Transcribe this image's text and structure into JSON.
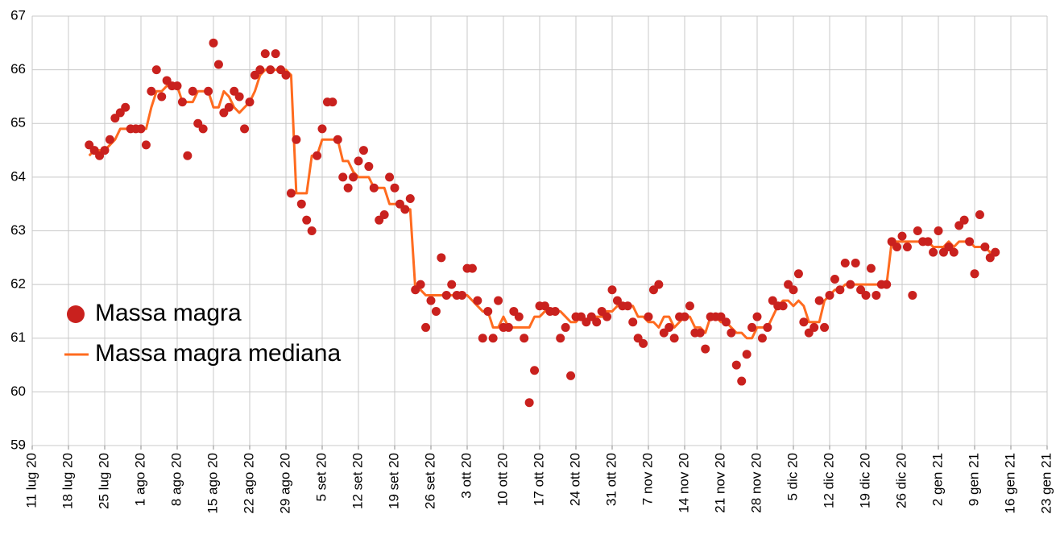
{
  "chart_data": {
    "type": "scatter",
    "x": [
      11,
      12,
      13,
      14,
      15,
      16,
      17,
      18,
      19,
      20,
      21,
      22,
      23,
      24,
      25,
      26,
      27,
      28,
      29,
      30,
      31,
      32,
      33,
      34,
      35,
      36,
      37,
      38,
      39,
      40,
      41,
      42,
      43,
      44,
      45,
      46,
      47,
      48,
      49,
      50,
      51,
      52,
      53,
      54,
      55,
      56,
      57,
      58,
      59,
      60,
      61,
      62,
      63,
      64,
      65,
      66,
      67,
      68,
      69,
      70,
      71,
      72,
      73,
      74,
      75,
      76,
      77,
      78,
      79,
      80,
      81,
      82,
      83,
      84,
      85,
      86,
      87,
      88,
      89,
      90,
      91,
      92,
      93,
      94,
      95,
      96,
      97,
      98,
      99,
      100,
      101,
      102,
      103,
      104,
      105,
      106,
      107,
      108,
      109,
      110,
      111,
      112,
      113,
      114,
      115,
      116,
      117,
      118,
      119,
      120,
      121,
      122,
      123,
      124,
      125,
      126,
      127,
      128,
      129,
      130,
      131,
      132,
      133,
      134,
      135,
      136,
      137,
      138,
      139,
      140,
      141,
      142,
      143,
      144,
      145,
      146,
      147,
      148,
      149,
      150,
      151,
      152,
      153,
      154,
      155,
      156,
      157,
      158,
      159,
      160,
      161,
      162,
      163,
      164,
      165,
      166,
      167,
      168,
      169,
      170,
      171,
      172,
      173,
      174,
      175,
      176,
      177,
      178,
      179,
      180,
      181,
      182,
      183,
      184,
      185,
      186
    ],
    "series": [
      {
        "name": "Massa magra",
        "color": "#c9211e",
        "mode": "markers",
        "values": [
          64.6,
          64.5,
          64.4,
          64.5,
          64.7,
          65.1,
          65.2,
          65.3,
          64.9,
          64.9,
          64.9,
          64.6,
          65.6,
          66.0,
          65.5,
          65.8,
          65.7,
          65.7,
          65.4,
          64.4,
          65.6,
          65.0,
          64.9,
          65.6,
          66.5,
          66.1,
          65.2,
          65.3,
          65.6,
          65.5,
          64.9,
          65.4,
          65.9,
          66.0,
          66.3,
          66.0,
          66.3,
          66.0,
          65.9,
          63.7,
          64.7,
          63.5,
          63.2,
          63.0,
          64.4,
          64.9,
          65.4,
          65.4,
          64.7,
          64.0,
          63.8,
          64.0,
          64.3,
          64.5,
          64.2,
          63.8,
          63.2,
          63.3,
          64.0,
          63.8,
          63.5,
          63.4,
          63.6,
          61.9,
          62.0,
          61.2,
          61.7,
          61.5,
          62.5,
          61.8,
          62.0,
          61.8,
          61.8,
          62.3,
          62.3,
          61.7,
          61.0,
          61.5,
          61.0,
          61.7,
          61.2,
          61.2,
          61.5,
          61.4,
          61.0,
          59.8,
          60.4,
          61.6,
          61.6,
          61.5,
          61.5,
          61.0,
          61.2,
          60.3,
          61.4,
          61.4,
          61.3,
          61.4,
          61.3,
          61.5,
          61.4,
          61.9,
          61.7,
          61.6,
          61.6,
          61.3,
          61.0,
          60.9,
          61.4,
          61.9,
          62.0,
          61.1,
          61.2,
          61.0,
          61.4,
          61.4,
          61.6,
          61.1,
          61.1,
          60.8,
          61.4,
          61.4,
          61.4,
          61.3,
          61.1,
          60.5,
          60.2,
          60.7,
          61.2,
          61.4,
          61.0,
          61.2,
          61.7,
          61.6,
          61.6,
          62.0,
          61.9,
          62.2,
          61.3,
          61.1,
          61.2,
          61.7,
          61.2,
          61.8,
          62.1,
          61.9,
          62.4,
          62.0,
          62.4,
          61.9,
          61.8,
          62.3,
          61.8,
          62.0,
          62.0,
          62.8,
          62.7,
          62.9,
          62.7,
          61.8,
          63.0,
          62.8,
          62.8,
          62.6,
          63.0,
          62.6,
          62.7,
          62.6,
          63.1,
          63.2,
          62.8,
          62.2,
          63.3,
          62.7,
          62.5,
          62.6
        ]
      },
      {
        "name": "Massa magra mediana",
        "color": "#ff6b1f",
        "mode": "line",
        "values": [
          64.4,
          64.5,
          64.5,
          64.5,
          64.6,
          64.7,
          64.9,
          64.9,
          64.9,
          64.9,
          64.9,
          64.9,
          65.3,
          65.6,
          65.6,
          65.7,
          65.7,
          65.7,
          65.4,
          65.4,
          65.4,
          65.6,
          65.6,
          65.6,
          65.3,
          65.3,
          65.6,
          65.5,
          65.3,
          65.2,
          65.3,
          65.4,
          65.6,
          65.9,
          66.0,
          66.0,
          66.0,
          66.0,
          66.0,
          65.9,
          63.7,
          63.7,
          63.7,
          64.4,
          64.4,
          64.7,
          64.7,
          64.7,
          64.7,
          64.3,
          64.3,
          64.1,
          64.0,
          64.0,
          64.0,
          63.8,
          63.8,
          63.8,
          63.5,
          63.5,
          63.5,
          63.4,
          63.4,
          61.9,
          61.9,
          61.8,
          61.8,
          61.8,
          61.8,
          61.8,
          61.8,
          61.8,
          61.8,
          61.8,
          61.7,
          61.6,
          61.5,
          61.5,
          61.2,
          61.2,
          61.4,
          61.2,
          61.2,
          61.2,
          61.2,
          61.2,
          61.4,
          61.4,
          61.5,
          61.5,
          61.5,
          61.5,
          61.4,
          61.3,
          61.3,
          61.4,
          61.3,
          61.4,
          61.4,
          61.4,
          61.5,
          61.5,
          61.6,
          61.6,
          61.6,
          61.6,
          61.4,
          61.4,
          61.3,
          61.3,
          61.2,
          61.4,
          61.4,
          61.2,
          61.3,
          61.4,
          61.4,
          61.2,
          61.2,
          61.1,
          61.4,
          61.4,
          61.3,
          61.3,
          61.2,
          61.1,
          61.1,
          61.0,
          61.0,
          61.2,
          61.2,
          61.2,
          61.4,
          61.6,
          61.7,
          61.7,
          61.6,
          61.7,
          61.6,
          61.3,
          61.3,
          61.3,
          61.7,
          61.8,
          61.9,
          61.9,
          62.0,
          62.0,
          62.0,
          62.0,
          62.0,
          62.0,
          62.0,
          62.0,
          62.0,
          62.8,
          62.8,
          62.8,
          62.8,
          62.8,
          62.8,
          62.8,
          62.8,
          62.7,
          62.7,
          62.7,
          62.8,
          62.7,
          62.8,
          62.8,
          62.8,
          62.7,
          62.7,
          62.7,
          62.6,
          62.6
        ]
      }
    ],
    "xlim": [
      0,
      196
    ],
    "xticks": [
      {
        "value": 0,
        "label": "11 lug 20"
      },
      {
        "value": 7,
        "label": "18 lug 20"
      },
      {
        "value": 14,
        "label": "25 lug 20"
      },
      {
        "value": 21,
        "label": "1 ago 20"
      },
      {
        "value": 28,
        "label": "8 ago 20"
      },
      {
        "value": 35,
        "label": "15 ago 20"
      },
      {
        "value": 42,
        "label": "22 ago 20"
      },
      {
        "value": 49,
        "label": "29 ago 20"
      },
      {
        "value": 56,
        "label": "5 set 20"
      },
      {
        "value": 63,
        "label": "12 set 20"
      },
      {
        "value": 70,
        "label": "19 set 20"
      },
      {
        "value": 77,
        "label": "26 set 20"
      },
      {
        "value": 84,
        "label": "3 ott 20"
      },
      {
        "value": 91,
        "label": "10 ott 20"
      },
      {
        "value": 98,
        "label": "17 ott 20"
      },
      {
        "value": 105,
        "label": "24 ott 20"
      },
      {
        "value": 112,
        "label": "31 ott 20"
      },
      {
        "value": 119,
        "label": "7 nov 20"
      },
      {
        "value": 126,
        "label": "14 nov 20"
      },
      {
        "value": 133,
        "label": "21 nov 20"
      },
      {
        "value": 140,
        "label": "28 nov 20"
      },
      {
        "value": 147,
        "label": "5 dic 20"
      },
      {
        "value": 154,
        "label": "12 dic 20"
      },
      {
        "value": 161,
        "label": "19 dic 20"
      },
      {
        "value": 168,
        "label": "26 dic 20"
      },
      {
        "value": 175,
        "label": "2 gen 21"
      },
      {
        "value": 182,
        "label": "9 gen 21"
      },
      {
        "value": 189,
        "label": "16 gen 21"
      },
      {
        "value": 196,
        "label": "23 gen 21"
      }
    ],
    "ylim": [
      59,
      67
    ],
    "yticks": [
      59,
      60,
      61,
      62,
      63,
      64,
      65,
      66,
      67
    ],
    "grid": true,
    "legend": "left"
  }
}
